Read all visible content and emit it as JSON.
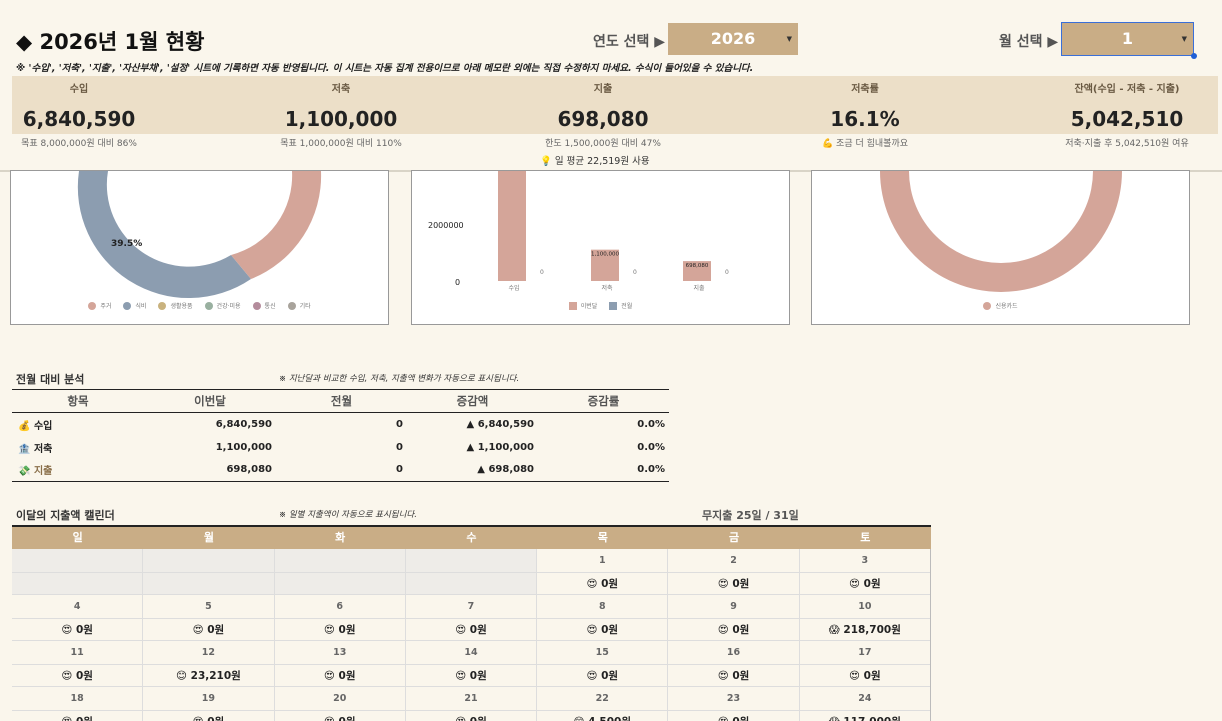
{
  "header": {
    "title": "◆ 2026년 1월 현황",
    "year_label": "연도 선택 ▶",
    "year_value": "2026",
    "month_label": "월 선택 ▶",
    "month_value": "1",
    "note": "※ '수입', '저축', '지출', '자산부채', '설정' 시트에 기록하면 자동 반영됩니다. 이 시트는 자동 집계 전용이므로 아래 메모란 외에는 직접 수정하지 마세요. 수식이 들어있을 수 있습니다."
  },
  "kpis": [
    {
      "label": "수입",
      "value": "6,840,590",
      "sub": "목표 8,000,000원 대비 86%"
    },
    {
      "label": "저축",
      "value": "1,100,000",
      "sub": "목표 1,000,000원 대비 110%"
    },
    {
      "label": "지출",
      "value": "698,080",
      "sub": "한도 1,500,000원 대비 47%"
    },
    {
      "label": "저축률",
      "value": "16.1%",
      "sub": "💪 조금 더 힘내볼까요"
    },
    {
      "label": "잔액(수입 - 저축 - 지출)",
      "value": "5,042,510",
      "sub": "저축·지출 후 5,042,510원 여유"
    }
  ],
  "daily_avg": "💡 일 평균 22,519원 사용",
  "colors": {
    "accent": "#c9ad86",
    "band": "#ecdfc8",
    "rose": "#d4a599",
    "slate": "#8c9db0"
  },
  "charts": {
    "donut1": {
      "pct_label": "39.5%",
      "legend": [
        {
          "name": "주거",
          "color": "#d4a599"
        },
        {
          "name": "식비",
          "color": "#8c9db0"
        },
        {
          "name": "생활용품",
          "color": "#c9b27e"
        },
        {
          "name": "건강·미용",
          "color": "#99b0a0"
        },
        {
          "name": "통신",
          "color": "#b48c9c"
        },
        {
          "name": "기타",
          "color": "#a8a39b"
        }
      ]
    },
    "bar": {
      "type": "bar",
      "categories": [
        "수입",
        "저축",
        "지출"
      ],
      "series": [
        {
          "name": "이번달",
          "values": [
            6840590,
            1100000,
            698080
          ],
          "color": "#d4a599"
        },
        {
          "name": "전월",
          "values": [
            0,
            0,
            0
          ],
          "color": "#8c9db0"
        }
      ],
      "y_tick_labels": [
        "2000000",
        "0"
      ],
      "data_labels": [
        "1,100,000",
        "698,080"
      ],
      "zero_labels": [
        "0",
        "0",
        "0"
      ]
    },
    "donut2": {
      "legend": [
        {
          "name": "신용카드",
          "color": "#d4a599"
        }
      ]
    }
  },
  "comparison": {
    "title": "전월 대비 분석",
    "note": "※ 지난달과 비교한 수입, 저축, 지출액 변화가 자동으로 표시됩니다.",
    "headers": [
      "항목",
      "이번달",
      "전월",
      "증감액",
      "증감률"
    ],
    "rows": [
      {
        "icon": "💰",
        "item": "수입",
        "current": "6,840,590",
        "prev": "0",
        "diff": "▲ 6,840,590",
        "rate": "0.0%"
      },
      {
        "icon": "🏦",
        "item": "저축",
        "current": "1,100,000",
        "prev": "0",
        "diff": "▲ 1,100,000",
        "rate": "0.0%"
      },
      {
        "icon": "💸",
        "item": "지출",
        "current": "698,080",
        "prev": "0",
        "diff": "▲ 698,080",
        "rate": "0.0%"
      }
    ]
  },
  "calendar": {
    "title": "이달의 지출액 캘린더",
    "note": "※ 일별 지출액이 자동으로 표시됩니다.",
    "no_spend": "무지출 25일 / 31일",
    "weekdays": [
      "일",
      "월",
      "화",
      "수",
      "목",
      "금",
      "토"
    ],
    "weeks": [
      [
        {
          "day": "",
          "amount": ""
        },
        {
          "day": "",
          "amount": ""
        },
        {
          "day": "",
          "amount": ""
        },
        {
          "day": "",
          "amount": ""
        },
        {
          "day": "1",
          "amount": "😍 0원"
        },
        {
          "day": "2",
          "amount": "😍 0원"
        },
        {
          "day": "3",
          "amount": "😍 0원"
        }
      ],
      [
        {
          "day": "4",
          "amount": "😍 0원"
        },
        {
          "day": "5",
          "amount": "😍 0원"
        },
        {
          "day": "6",
          "amount": "😍 0원"
        },
        {
          "day": "7",
          "amount": "😍 0원"
        },
        {
          "day": "8",
          "amount": "😍 0원"
        },
        {
          "day": "9",
          "amount": "😍 0원"
        },
        {
          "day": "10",
          "amount": "😱 218,700원"
        }
      ],
      [
        {
          "day": "11",
          "amount": "😍 0원"
        },
        {
          "day": "12",
          "amount": "😊 23,210원"
        },
        {
          "day": "13",
          "amount": "😍 0원"
        },
        {
          "day": "14",
          "amount": "😍 0원"
        },
        {
          "day": "15",
          "amount": "😍 0원"
        },
        {
          "day": "16",
          "amount": "😍 0원"
        },
        {
          "day": "17",
          "amount": "😍 0원"
        }
      ],
      [
        {
          "day": "18",
          "amount": "😍 0원"
        },
        {
          "day": "19",
          "amount": "😍 0원"
        },
        {
          "day": "20",
          "amount": "😍 0원"
        },
        {
          "day": "21",
          "amount": "😍 0원"
        },
        {
          "day": "22",
          "amount": "😊 4,500원"
        },
        {
          "day": "23",
          "amount": "😍 0원"
        },
        {
          "day": "24",
          "amount": "😱 117,000원"
        }
      ]
    ]
  }
}
